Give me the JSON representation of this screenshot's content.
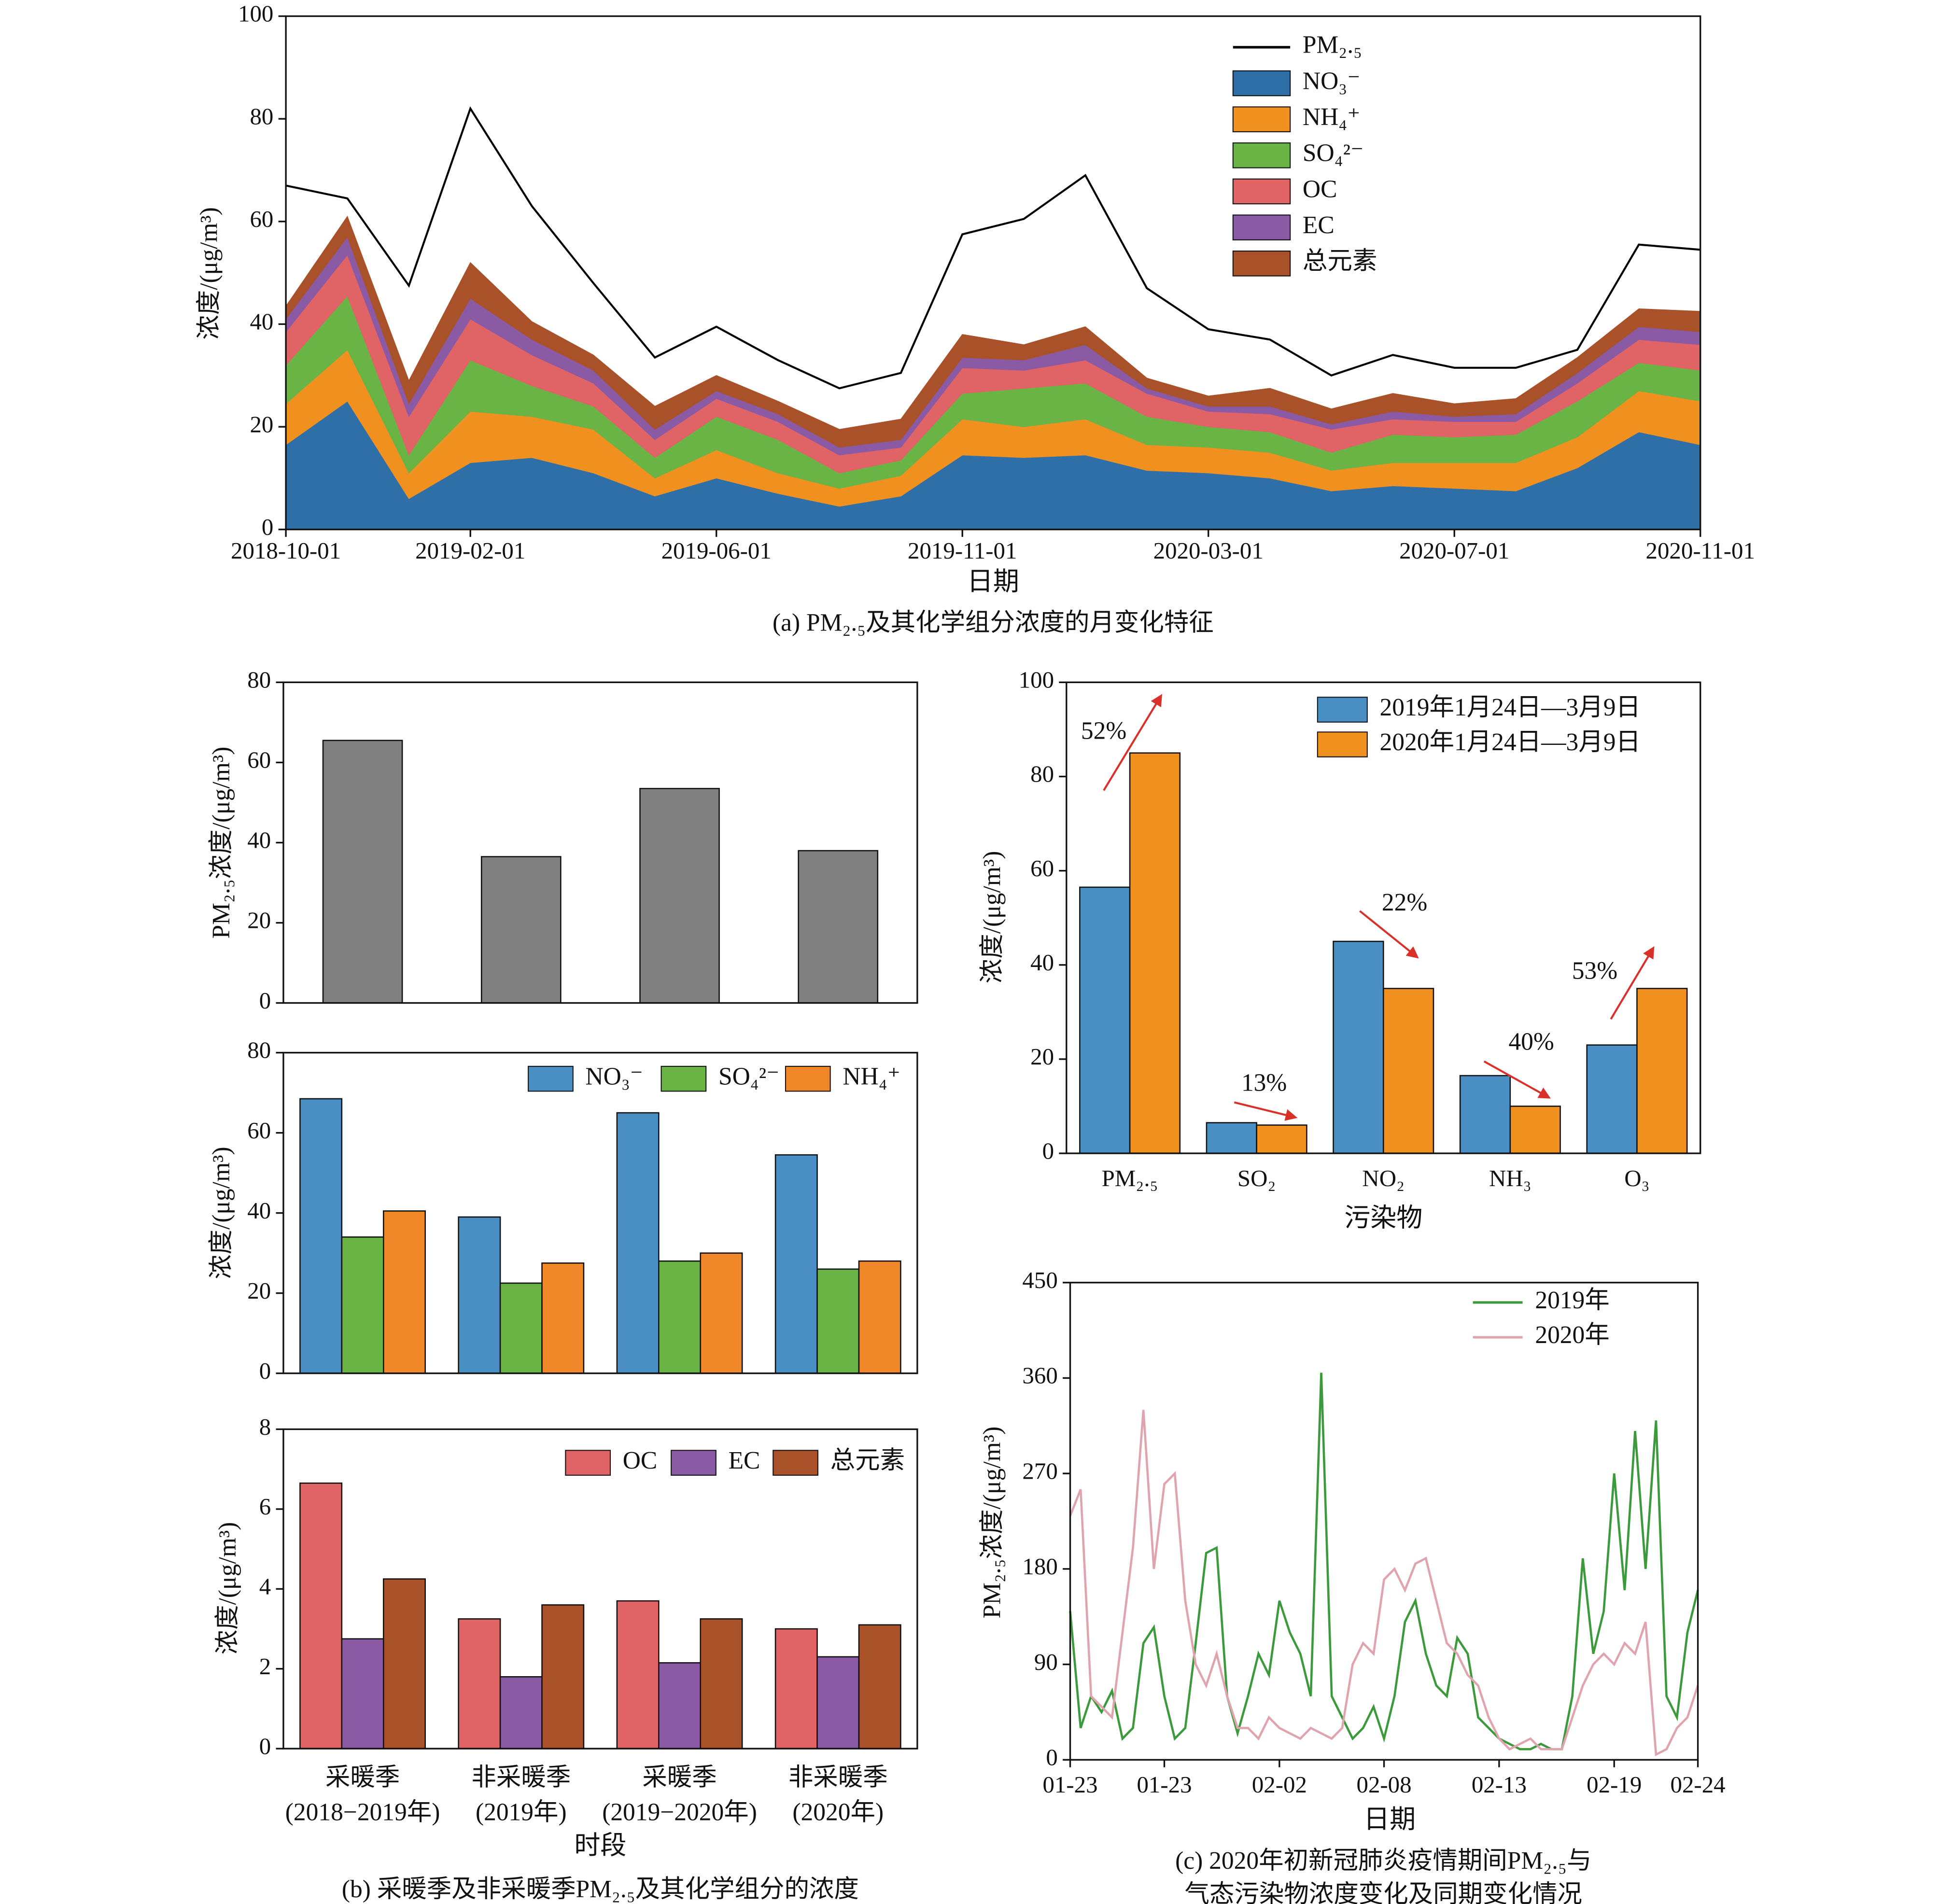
{
  "chart_data": [
    {
      "type": "area",
      "ylabel": "浓度/(μg/m³)",
      "xlabel": "日期",
      "caption": "(a) PM₂.₅及其化学组分浓度的月变化特征",
      "categories": [
        "2018-10-01",
        null,
        null,
        "2019-02-01",
        null,
        null,
        null,
        "2019-06-01",
        null,
        null,
        null,
        "2019-11-01",
        null,
        null,
        null,
        "2020-03-01",
        null,
        null,
        null,
        "2020-07-01",
        null,
        null,
        null,
        "2020-11-01"
      ],
      "ylim": [
        0,
        100
      ],
      "yticks": [
        0,
        20,
        40,
        60,
        80,
        100
      ],
      "series": [
        {
          "name": "PM₂.₅",
          "type": "line",
          "color": "#000000",
          "values": [
            67,
            64.5,
            47.5,
            82,
            63,
            48,
            33.5,
            39.5,
            33,
            27.5,
            30.5,
            57.5,
            60.5,
            69,
            47,
            39,
            37,
            30,
            34,
            31.5,
            31.5,
            35,
            55.5,
            54.5
          ]
        },
        {
          "name": "NO₃⁻",
          "type": "area",
          "color": "#2e6fa7",
          "values": [
            16.5,
            25,
            6,
            13,
            14,
            11,
            6.5,
            10,
            7,
            4.5,
            6.5,
            14.5,
            14,
            14.5,
            11.5,
            11,
            10,
            7.5,
            8.5,
            8,
            7.5,
            12,
            19,
            16.5
          ]
        },
        {
          "name": "NH₄⁺",
          "type": "area",
          "color": "#f0901f",
          "values": [
            8,
            10,
            5,
            10,
            8,
            8.5,
            3.5,
            5.5,
            4,
            3.5,
            4,
            7,
            6,
            7,
            5,
            5,
            5,
            4,
            4.5,
            5,
            5.5,
            6,
            8,
            8.5
          ]
        },
        {
          "name": "SO₄²⁻",
          "type": "area",
          "color": "#6ab446",
          "values": [
            7.5,
            10.5,
            3.5,
            10,
            6,
            4.5,
            4,
            6.5,
            6.5,
            3,
            3,
            5,
            7.5,
            7,
            5.5,
            4,
            4,
            3.5,
            5.5,
            5,
            5.5,
            7,
            5.5,
            6
          ]
        },
        {
          "name": "OC",
          "type": "area",
          "color": "#e06366",
          "values": [
            6.5,
            8,
            7.5,
            8,
            6,
            4.5,
            3.5,
            3.5,
            3.5,
            3.5,
            2.5,
            5,
            3.5,
            4.5,
            4.5,
            3,
            3.5,
            4.5,
            3,
            3,
            2.5,
            3.5,
            4.5,
            5
          ]
        },
        {
          "name": "EC",
          "type": "area",
          "color": "#8a5aa5",
          "values": [
            2.5,
            3.5,
            2.5,
            4,
            3,
            2.5,
            2,
            1.5,
            1.5,
            1.5,
            1.5,
            2,
            2,
            3,
            1,
            1,
            1.5,
            1,
            1.5,
            1,
            1.5,
            2,
            2.5,
            2.5
          ]
        },
        {
          "name": "总元素",
          "type": "area",
          "color": "#a9522a",
          "values": [
            2.5,
            4,
            4.5,
            7,
            3.5,
            3,
            4.5,
            3,
            2.5,
            3.5,
            4,
            4.5,
            3,
            3.5,
            2,
            2,
            3.5,
            3,
            3.5,
            2.5,
            3,
            3,
            3.5,
            4
          ]
        }
      ]
    },
    {
      "type": "bar",
      "ylabel": "PM₂.₅浓度/(μg/m³)",
      "ylim": [
        0,
        80
      ],
      "yticks": [
        0,
        20,
        40,
        60,
        80
      ],
      "color": "#808080",
      "values": [
        65.5,
        36.5,
        53.5,
        38
      ]
    },
    {
      "type": "bar",
      "ylabel": "浓度/(μg/m³)",
      "ylim": [
        0,
        80
      ],
      "yticks": [
        0,
        20,
        40,
        60,
        80
      ],
      "series": [
        {
          "name": "NO₃⁻",
          "color": "#4a8fc4",
          "values": [
            68.5,
            39,
            65,
            54.5
          ]
        },
        {
          "name": "SO₄²⁻",
          "color": "#6ab446",
          "values": [
            34,
            22.5,
            28,
            26
          ]
        },
        {
          "name": "NH₄⁺",
          "color": "#f0882a",
          "values": [
            40.5,
            27.5,
            30,
            28
          ]
        }
      ]
    },
    {
      "type": "bar",
      "ylabel": "浓度/(μg/m³)",
      "xlabel": "时段",
      "caption": "(b) 采暖季及非采暖季PM₂.₅及其化学组分的浓度",
      "categories": [
        [
          "采暖季",
          "(2018−2019年)"
        ],
        [
          "非采暖季",
          "(2019年)"
        ],
        [
          "采暖季",
          "(2019−2020年)"
        ],
        [
          "非采暖季",
          "(2020年)"
        ]
      ],
      "ylim": [
        0,
        8
      ],
      "yticks": [
        0,
        2,
        4,
        6,
        8
      ],
      "series": [
        {
          "name": "OC",
          "color": "#e06366",
          "values": [
            6.65,
            3.25,
            3.7,
            3.0
          ]
        },
        {
          "name": "EC",
          "color": "#8a5aa5",
          "values": [
            2.75,
            1.8,
            2.15,
            2.3
          ]
        },
        {
          "name": "总元素",
          "color": "#a9522a",
          "values": [
            4.25,
            3.6,
            3.25,
            3.1
          ]
        }
      ]
    },
    {
      "type": "bar",
      "ylabel": "浓度/(μg/m³)",
      "xlabel": "污染物",
      "categories": [
        "PM₂.₅",
        "SO₂",
        "NO₂",
        "NH₃",
        "O₃"
      ],
      "ylim": [
        0,
        100
      ],
      "yticks": [
        0,
        20,
        40,
        60,
        80,
        100
      ],
      "series": [
        {
          "name": "2019年1月24日—3月9日",
          "color": "#4a8fc4",
          "values": [
            56.5,
            6.5,
            45,
            16.5,
            23
          ]
        },
        {
          "name": "2020年1月24日—3月9日",
          "color": "#f0901f",
          "values": [
            85,
            6,
            35,
            10,
            35
          ]
        }
      ],
      "annotations": [
        "52%",
        "13%",
        "22%",
        "40%",
        "53%"
      ]
    },
    {
      "type": "line",
      "ylabel": "PM₂.₅浓度/(μg/m³)",
      "xlabel": "日期",
      "caption": [
        "(c) 2020年初新冠肺炎疫情期间PM₂.₅与",
        "气态污染物浓度变化及同期变化情况"
      ],
      "categories": [
        "01-23",
        null,
        null,
        null,
        null,
        null,
        null,
        null,
        null,
        "01-23",
        null,
        null,
        null,
        null,
        null,
        null,
        null,
        null,
        null,
        null,
        "02-02",
        null,
        null,
        null,
        null,
        null,
        null,
        null,
        null,
        null,
        "02-08",
        null,
        null,
        null,
        null,
        null,
        null,
        null,
        null,
        null,
        null,
        "02-13",
        null,
        null,
        null,
        null,
        null,
        null,
        null,
        null,
        null,
        null,
        "02-19",
        null,
        null,
        null,
        null,
        null,
        null,
        null,
        "02-24"
      ],
      "ylim": [
        0,
        450
      ],
      "yticks": [
        0,
        90,
        180,
        270,
        360,
        450
      ],
      "series": [
        {
          "name": "2019年",
          "color": "#3c9a3c",
          "values": [
            140,
            30,
            60,
            45,
            65,
            20,
            30,
            110,
            125,
            60,
            20,
            30,
            110,
            195,
            200,
            60,
            25,
            60,
            100,
            80,
            150,
            120,
            100,
            60,
            365,
            60,
            40,
            20,
            30,
            50,
            20,
            60,
            130,
            150,
            100,
            70,
            60,
            115,
            100,
            40,
            30,
            20,
            15,
            10,
            10,
            15,
            10,
            10,
            60,
            190,
            100,
            140,
            270,
            160,
            310,
            180,
            320,
            60,
            40,
            120,
            160
          ]
        },
        {
          "name": "2020年",
          "color": "#e0a4ae",
          "values": [
            230,
            255,
            60,
            50,
            40,
            120,
            200,
            330,
            180,
            260,
            270,
            150,
            90,
            70,
            100,
            60,
            30,
            30,
            20,
            40,
            30,
            25,
            20,
            30,
            25,
            20,
            30,
            90,
            110,
            100,
            170,
            180,
            160,
            185,
            190,
            150,
            110,
            100,
            80,
            70,
            40,
            20,
            10,
            15,
            20,
            10,
            10,
            10,
            40,
            70,
            90,
            100,
            90,
            110,
            100,
            130,
            5,
            10,
            30,
            40,
            70
          ]
        }
      ]
    }
  ]
}
